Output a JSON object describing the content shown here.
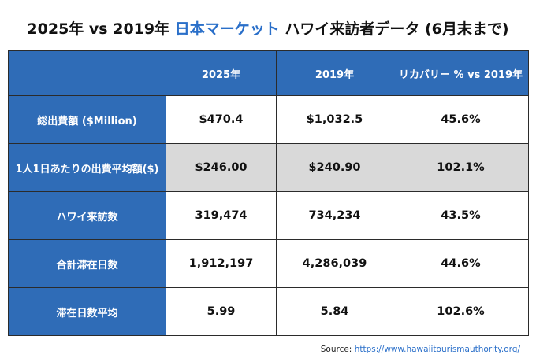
{
  "title": {
    "part1": "2025年 vs 2019年",
    "part2": "日本マーケット",
    "part3": "ハワイ来訪者データ (6月末まで)"
  },
  "table": {
    "headers": [
      "",
      "2025年",
      "2019年",
      "リカバリー % vs 2019年"
    ],
    "rows": [
      {
        "label": "総出費額 ($Million)",
        "cells": [
          "$470.4",
          "$1,032.5",
          "45.6%"
        ]
      },
      {
        "label": "1人1日あたりの出費平均額($)",
        "cells": [
          "$246.00",
          "$240.90",
          "102.1%"
        ]
      },
      {
        "label": "ハワイ来訪数",
        "cells": [
          "319,474",
          "734,234",
          "43.5%"
        ]
      },
      {
        "label": "合計滞在日数",
        "cells": [
          "1,912,197",
          "4,286,039",
          "44.6%"
        ]
      },
      {
        "label": "滞在日数平均",
        "cells": [
          "5.99",
          "5.84",
          "102.6%"
        ]
      }
    ]
  },
  "source": {
    "label": "Source:",
    "link": "https://www.hawaiitourismauthority.org/"
  },
  "colors": {
    "header_blue": "#2f6cb7",
    "accent_text": "#2a6fc9",
    "shaded_row": "#d9d9d9"
  }
}
